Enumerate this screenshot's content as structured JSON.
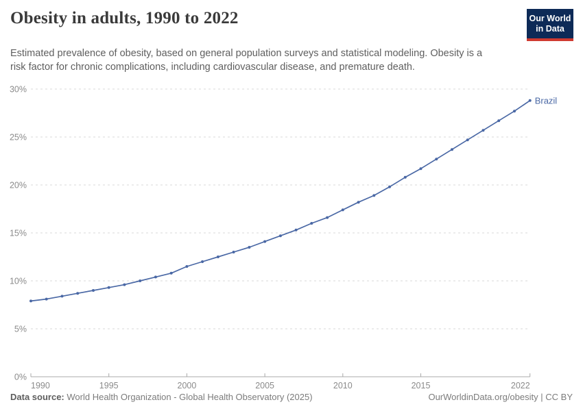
{
  "header": {
    "title": "Obesity in adults, 1990 to 2022",
    "subtitle": "Estimated prevalence of obesity, based on general population surveys and statistical modeling. Obesity is a risk factor for chronic complications, including cardiovascular disease, and premature death.",
    "logo": {
      "line1": "Our World",
      "line2": "in Data",
      "bg_color": "#0d2a57",
      "accent_color": "#cf3a30"
    }
  },
  "chart_data": {
    "type": "line",
    "title": "Obesity in adults, 1990 to 2022",
    "xlabel": "",
    "ylabel": "",
    "xlim": [
      1990,
      2022
    ],
    "ylim": [
      0,
      30
    ],
    "x_ticks": [
      1990,
      1995,
      2000,
      2005,
      2010,
      2015,
      2022
    ],
    "y_ticks": [
      0,
      5,
      10,
      15,
      20,
      25,
      30
    ],
    "y_tick_suffix": "%",
    "grid": "horizontal-dashed",
    "grid_color": "#d9d9d9",
    "axis_color": "#a8a8a8",
    "tick_label_color": "#8a8a8a",
    "legend_position": "end-of-line-label",
    "series": [
      {
        "name": "Brazil",
        "color": "#4a68a5",
        "x": [
          1990,
          1991,
          1992,
          1993,
          1994,
          1995,
          1996,
          1997,
          1998,
          1999,
          2000,
          2001,
          2002,
          2003,
          2004,
          2005,
          2006,
          2007,
          2008,
          2009,
          2010,
          2011,
          2012,
          2013,
          2014,
          2015,
          2016,
          2017,
          2018,
          2019,
          2020,
          2021,
          2022
        ],
        "values": [
          7.9,
          8.1,
          8.4,
          8.7,
          9.0,
          9.3,
          9.6,
          10.0,
          10.4,
          10.8,
          11.5,
          12.0,
          12.5,
          13.0,
          13.5,
          14.1,
          14.7,
          15.3,
          16.0,
          16.6,
          17.4,
          18.2,
          18.9,
          19.8,
          20.8,
          21.7,
          22.7,
          23.7,
          24.7,
          25.7,
          26.7,
          27.7,
          28.8
        ]
      }
    ]
  },
  "footer": {
    "datasource_label": "Data source:",
    "datasource_value": "World Health Organization - Global Health Observatory (2025)",
    "link": "OurWorldinData.org/obesity",
    "separator": "|",
    "license": "CC BY"
  }
}
